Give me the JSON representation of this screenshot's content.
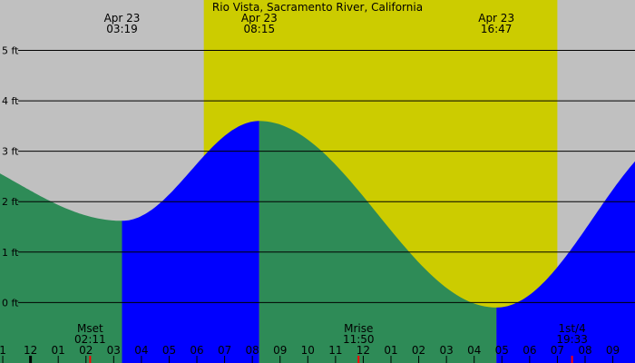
{
  "chart_data": {
    "type": "area",
    "title": "Rio Vista, Sacramento River, California",
    "y_ticks": [
      {
        "label": "0 ft",
        "value": 0
      },
      {
        "label": "1 ft",
        "value": 1
      },
      {
        "label": "2 ft",
        "value": 2
      },
      {
        "label": "3 ft",
        "value": 3
      },
      {
        "label": "4 ft",
        "value": 4
      },
      {
        "label": "5 ft",
        "value": 5
      }
    ],
    "ylim": [
      -1.2,
      6.0
    ],
    "xlim": [
      0.9,
      23.8
    ],
    "x_hour_labels": [
      {
        "h": 1.0,
        "label": "1"
      },
      {
        "h": 2.0,
        "label": "12"
      },
      {
        "h": 3.0,
        "label": "01"
      },
      {
        "h": 4.0,
        "label": "02"
      },
      {
        "h": 5.0,
        "label": "03"
      },
      {
        "h": 6.0,
        "label": "04"
      },
      {
        "h": 7.0,
        "label": "05"
      },
      {
        "h": 8.0,
        "label": "06"
      },
      {
        "h": 9.0,
        "label": "07"
      },
      {
        "h": 10.0,
        "label": "08"
      },
      {
        "h": 11.0,
        "label": "09"
      },
      {
        "h": 12.0,
        "label": "10"
      },
      {
        "h": 13.0,
        "label": "11"
      },
      {
        "h": 14.0,
        "label": "12"
      },
      {
        "h": 15.0,
        "label": "01"
      },
      {
        "h": 16.0,
        "label": "02"
      },
      {
        "h": 17.0,
        "label": "03"
      },
      {
        "h": 18.0,
        "label": "04"
      },
      {
        "h": 19.0,
        "label": "05"
      },
      {
        "h": 20.0,
        "label": "06"
      },
      {
        "h": 21.0,
        "label": "07"
      },
      {
        "h": 22.0,
        "label": "08"
      },
      {
        "h": 23.0,
        "label": "09"
      }
    ],
    "daylight": {
      "start": 8.25,
      "end": 21.0
    },
    "tide_events": [
      {
        "type": "low",
        "time": 5.3,
        "height": 1.62,
        "date_label": "Apr 23",
        "time_label": "03:19"
      },
      {
        "type": "high",
        "time": 10.25,
        "height": 3.6,
        "date_label": "Apr 23",
        "time_label": "08:15"
      },
      {
        "type": "low",
        "time": 18.8,
        "height": -0.1,
        "date_label": "Apr 23",
        "time_label": "16:47"
      }
    ],
    "tide_curve": [
      {
        "t": 0.9,
        "h": 2.9
      },
      {
        "t": 23.8,
        "h": 2.8
      }
    ],
    "moon_events": [
      {
        "label": "Mset",
        "time_label": "02:11",
        "h": 4.15
      },
      {
        "label": "Mrise",
        "time_label": "11:50",
        "h": 13.83
      },
      {
        "label": "1st/4",
        "time_label": "19:33",
        "h": 21.53
      }
    ],
    "colors": {
      "night": "#c0c0c0",
      "day": "#cccc00",
      "falling": "#2e8b57",
      "rising": "#0000ff",
      "grid": "#000000",
      "marker": "#ff0000"
    }
  }
}
